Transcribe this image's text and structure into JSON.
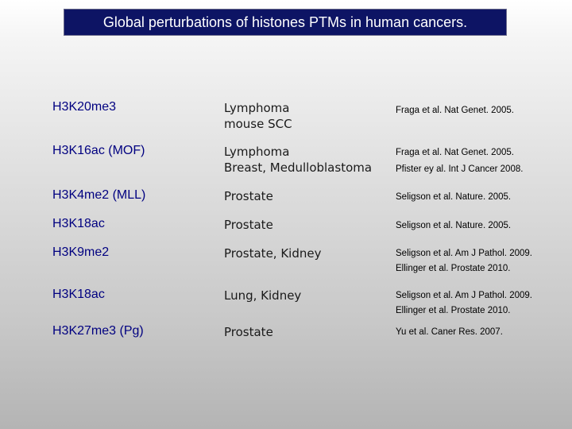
{
  "title": "Global perturbations of histones PTMs in human cancers.",
  "rows": [
    {
      "mark": "H3K20me3",
      "cancers": [
        "Lymphoma",
        "mouse SCC"
      ],
      "refs": [
        "Fraga et al. Nat Genet. 2005."
      ]
    },
    {
      "mark": "H3K16ac (MOF)",
      "cancers": [
        "Lymphoma",
        "Breast, Medulloblastoma"
      ],
      "refs": [
        "Fraga et al. Nat Genet. 2005.",
        "Pfister ey al. Int J Cancer 2008."
      ]
    },
    {
      "mark": "H3K4me2 (MLL)",
      "cancers": [
        "Prostate"
      ],
      "refs": [
        "Seligson et al. Nature. 2005."
      ]
    },
    {
      "mark": "H3K18ac",
      "cancers": [
        "Prostate"
      ],
      "refs": [
        "Seligson et al. Nature. 2005."
      ]
    },
    {
      "mark": "H3K9me2",
      "cancers": [
        "Prostate, Kidney"
      ],
      "refs": [
        "Seligson et al. Am J Pathol. 2009.",
        "Ellinger et al. Prostate 2010."
      ]
    },
    {
      "mark": "H3K18ac",
      "cancers": [
        "Lung, Kidney"
      ],
      "refs": [
        "Seligson et al. Am J Pathol. 2009.",
        "Ellinger et al. Prostate 2010."
      ]
    },
    {
      "mark": "H3K27me3 (Pg)",
      "cancers": [
        "Prostate"
      ],
      "refs": [
        "Yu et al. Caner Res. 2007."
      ]
    }
  ]
}
